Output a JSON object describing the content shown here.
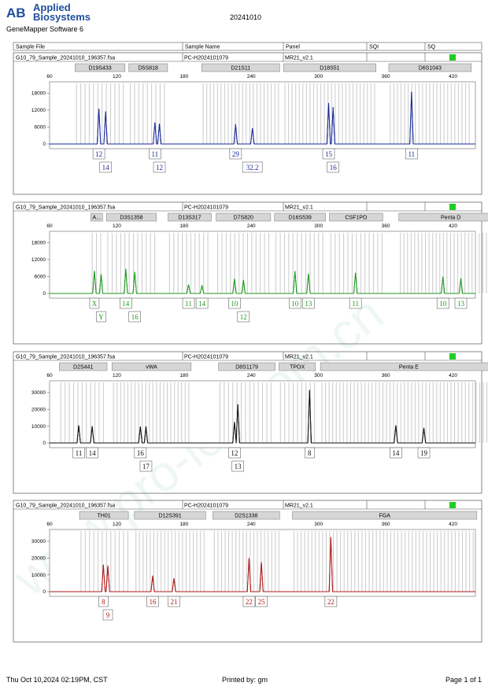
{
  "header": {
    "brand_line1": "Applied",
    "brand_line2": "Biosystems",
    "software": "GeneMapper Software 6",
    "date": "20241010"
  },
  "table_header": [
    "Sample File",
    "Sample Name",
    "Panel",
    "SQI",
    "SQ"
  ],
  "footer": {
    "printed_at": "Thu Oct 10,2024 02:19PM, CST",
    "printed_by": "Printed by: gm",
    "page": "Page 1 of 1"
  },
  "watermark": "www.pro-lek.com.cn",
  "colors": {
    "blue": "#1a2a9a",
    "green": "#1f9a1f",
    "black": "#111111",
    "red": "#b01a1a",
    "quality": "#22cc22"
  },
  "chart_data": [
    {
      "type": "line",
      "dye": "blue",
      "sample_file": "G10_79_Sample_20241010_196357.fsa",
      "sample_name": "PC-H2024101079",
      "panel": "MR21_v2.1",
      "xlim": [
        60,
        440
      ],
      "x_ticks": [
        60,
        120,
        180,
        240,
        300,
        360,
        420
      ],
      "ylim": [
        0,
        22000
      ],
      "y_ticks": [
        0,
        6000,
        12000,
        18000
      ],
      "markers": [
        {
          "name": "D19S433",
          "start": 82,
          "end": 128
        },
        {
          "name": "D5S818",
          "start": 130,
          "end": 166
        },
        {
          "name": "D21S11",
          "start": 195,
          "end": 266
        },
        {
          "name": "D18S51",
          "start": 268,
          "end": 352
        },
        {
          "name": "D6S1043",
          "start": 362,
          "end": 437
        }
      ],
      "peaks": [
        {
          "x": 104,
          "h": 12500,
          "label": "12",
          "row": 0
        },
        {
          "x": 110,
          "h": 11500,
          "label": "14",
          "row": 1
        },
        {
          "x": 154,
          "h": 7600,
          "label": "11",
          "row": 0
        },
        {
          "x": 158,
          "h": 7200,
          "label": "12",
          "row": 1
        },
        {
          "x": 226,
          "h": 7000,
          "label": "29",
          "row": 0
        },
        {
          "x": 241,
          "h": 5600,
          "label": "32.2",
          "row": 1
        },
        {
          "x": 309,
          "h": 14500,
          "label": "15",
          "row": 0
        },
        {
          "x": 313,
          "h": 13000,
          "label": "16",
          "row": 1
        },
        {
          "x": 383,
          "h": 18500,
          "label": "11",
          "row": 0
        }
      ]
    },
    {
      "type": "line",
      "dye": "green",
      "sample_file": "G10_79_Sample_20241010_196357.fsa",
      "sample_name": "PC-H2024101079",
      "panel": "MR21_v2.1",
      "xlim": [
        60,
        440
      ],
      "x_ticks": [
        60,
        120,
        180,
        240,
        300,
        360,
        420
      ],
      "ylim": [
        0,
        22000
      ],
      "y_ticks": [
        0,
        6000,
        12000,
        18000
      ],
      "markers": [
        {
          "name": "A...",
          "start": 96,
          "end": 108
        },
        {
          "name": "D3S1358",
          "start": 110,
          "end": 156
        },
        {
          "name": "D13S317",
          "start": 165,
          "end": 205
        },
        {
          "name": "D7S820",
          "start": 208,
          "end": 258
        },
        {
          "name": "D16S539",
          "start": 260,
          "end": 307
        },
        {
          "name": "CSF1PO",
          "start": 309,
          "end": 358
        },
        {
          "name": "Penta D",
          "start": 371,
          "end": 465
        }
      ],
      "peaks": [
        {
          "x": 100,
          "h": 8000,
          "label": "X",
          "row": 0
        },
        {
          "x": 106,
          "h": 6800,
          "label": "Y",
          "row": 1
        },
        {
          "x": 128,
          "h": 8700,
          "label": "14",
          "row": 0
        },
        {
          "x": 136,
          "h": 7600,
          "label": "16",
          "row": 1
        },
        {
          "x": 184,
          "h": 3100,
          "label": "11",
          "row": 0
        },
        {
          "x": 196,
          "h": 2900,
          "label": "14",
          "row": 0
        },
        {
          "x": 225,
          "h": 5200,
          "label": "10",
          "row": 0
        },
        {
          "x": 233,
          "h": 4800,
          "label": "12",
          "row": 1
        },
        {
          "x": 279,
          "h": 7900,
          "label": "10",
          "row": 0
        },
        {
          "x": 291,
          "h": 7000,
          "label": "13",
          "row": 0
        },
        {
          "x": 333,
          "h": 7300,
          "label": "11",
          "row": 0
        },
        {
          "x": 411,
          "h": 5900,
          "label": "10",
          "row": 0
        },
        {
          "x": 427,
          "h": 5300,
          "label": "13",
          "row": 0
        }
      ]
    },
    {
      "type": "line",
      "dye": "black",
      "sample_file": "G10_79_Sample_20241010_196357.fsa",
      "sample_name": "PC-H2024101079",
      "panel": "MR21_v2.1",
      "xlim": [
        60,
        440
      ],
      "x_ticks": [
        60,
        120,
        180,
        240,
        300,
        360,
        420
      ],
      "ylim": [
        0,
        37000
      ],
      "y_ticks": [
        0,
        10000,
        20000,
        30000
      ],
      "markers": [
        {
          "name": "D2S441",
          "start": 68,
          "end": 112
        },
        {
          "name": "vWA",
          "start": 115,
          "end": 187
        },
        {
          "name": "D8S1179",
          "start": 210,
          "end": 262
        },
        {
          "name": "TPOX",
          "start": 264,
          "end": 298
        },
        {
          "name": "Penta E",
          "start": 301,
          "end": 460
        }
      ],
      "peaks": [
        {
          "x": 86,
          "h": 10500,
          "label": "11",
          "row": 0
        },
        {
          "x": 98,
          "h": 10000,
          "label": "14",
          "row": 0
        },
        {
          "x": 141,
          "h": 9800,
          "label": "16",
          "row": 0
        },
        {
          "x": 146,
          "h": 9800,
          "label": "17",
          "row": 1
        },
        {
          "x": 225,
          "h": 12500,
          "label": "12",
          "row": 0
        },
        {
          "x": 228,
          "h": 23000,
          "label": "13",
          "row": 1
        },
        {
          "x": 292,
          "h": 31500,
          "label": "8",
          "row": 0
        },
        {
          "x": 369,
          "h": 10500,
          "label": "14",
          "row": 0
        },
        {
          "x": 394,
          "h": 9000,
          "label": "19",
          "row": 0
        }
      ]
    },
    {
      "type": "line",
      "dye": "red",
      "sample_file": "G10_79_Sample_20241010_196357.fsa",
      "sample_name": "PC-H2024101079",
      "panel": "MR21_v2.1",
      "xlim": [
        60,
        440
      ],
      "x_ticks": [
        60,
        120,
        180,
        240,
        300,
        360,
        420
      ],
      "ylim": [
        0,
        37000
      ],
      "y_ticks": [
        0,
        10000,
        20000,
        30000
      ],
      "markers": [
        {
          "name": "TH01",
          "start": 86,
          "end": 131
        },
        {
          "name": "D12S391",
          "start": 135,
          "end": 200
        },
        {
          "name": "D2S1338",
          "start": 205,
          "end": 266
        },
        {
          "name": "FGA",
          "start": 276,
          "end": 442
        }
      ],
      "peaks": [
        {
          "x": 108,
          "h": 16000,
          "label": "8",
          "row": 0
        },
        {
          "x": 112,
          "h": 15500,
          "label": "9",
          "row": 1
        },
        {
          "x": 152,
          "h": 9500,
          "label": "16",
          "row": 0
        },
        {
          "x": 171,
          "h": 8000,
          "label": "21",
          "row": 0
        },
        {
          "x": 238,
          "h": 20000,
          "label": "22",
          "row": 0
        },
        {
          "x": 249,
          "h": 17500,
          "label": "25",
          "row": 0
        },
        {
          "x": 311,
          "h": 32500,
          "label": "22",
          "row": 0
        }
      ]
    }
  ]
}
